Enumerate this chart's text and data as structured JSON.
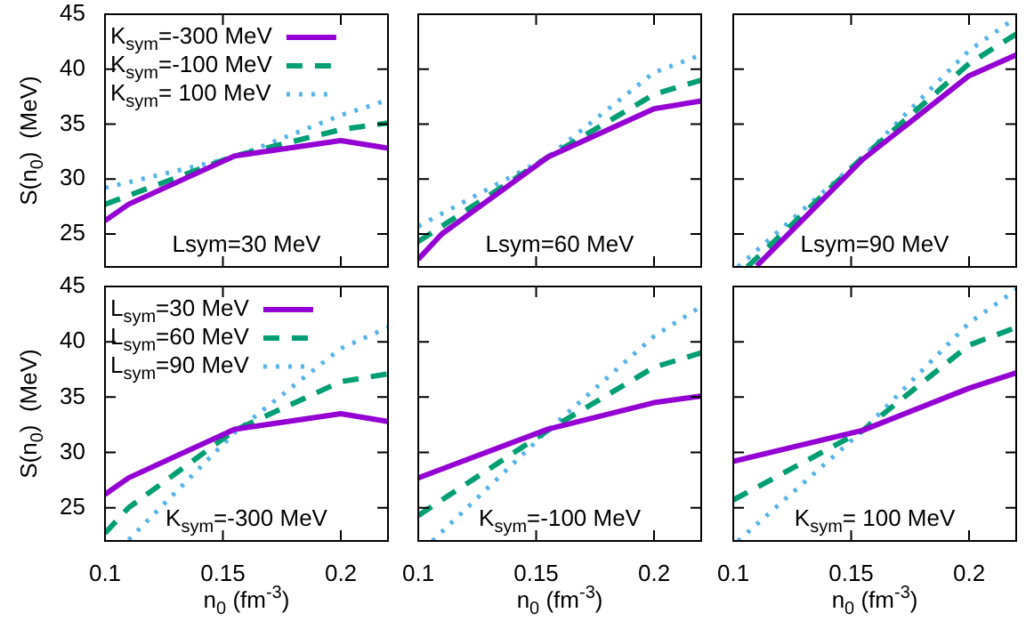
{
  "chart_data": [
    {
      "type": "line",
      "ylabel": "S(n$_{0}$)  (MeV)",
      "xlim": [
        0.1,
        0.22
      ],
      "ylim": [
        22,
        45
      ],
      "xticks": [
        0.1,
        0.15,
        0.2
      ],
      "yticks": [
        25,
        30,
        35,
        40,
        45
      ],
      "tick_labels": "y",
      "grid": false,
      "marker": "none",
      "legend": "top left",
      "annotations": [
        "Lsym=30 MeV"
      ],
      "series": [
        {
          "name": "K$_{sym}$=-300 MeV",
          "color": "#9400d3",
          "line_style": "solid",
          "x": [
            0.1,
            0.11,
            0.155,
            0.2,
            0.22
          ],
          "values": [
            26.2,
            27.7,
            32.1,
            33.5,
            32.8
          ]
        },
        {
          "name": "K$_{sym}$=-100 MeV",
          "color": "#009e73",
          "line_style": "dashed",
          "x": [
            0.1,
            0.155,
            0.2,
            0.22
          ],
          "values": [
            27.7,
            32.1,
            34.5,
            35.1
          ]
        },
        {
          "name": "K$_{sym}$= 100 MeV",
          "color": "#56b4e9",
          "line_style": "dotted",
          "x": [
            0.1,
            0.155,
            0.2,
            0.22
          ],
          "values": [
            29.2,
            32,
            35.8,
            37.2
          ]
        }
      ]
    },
    {
      "type": "line",
      "xlim": [
        0.1,
        0.22
      ],
      "ylim": [
        22,
        45
      ],
      "xticks": [
        0.1,
        0.15,
        0.2
      ],
      "yticks": [
        25,
        30,
        35,
        40,
        45
      ],
      "tick_labels": false,
      "grid": false,
      "marker": "none",
      "annotations": [
        "Lsym=60 MeV"
      ],
      "series": [
        {
          "color": "#9400d3",
          "line_style": "solid",
          "x": [
            0.1,
            0.11,
            0.155,
            0.2,
            0.22
          ],
          "values": [
            22.7,
            25,
            32,
            36.4,
            37.1
          ]
        },
        {
          "color": "#009e73",
          "line_style": "dashed",
          "x": [
            0.1,
            0.155,
            0.2,
            0.22
          ],
          "values": [
            24.3,
            32,
            37.7,
            39
          ]
        },
        {
          "color": "#56b4e9",
          "line_style": "dotted",
          "x": [
            0.1,
            0.155,
            0.2,
            0.22
          ],
          "values": [
            25.7,
            32,
            39.7,
            41.3
          ]
        }
      ]
    },
    {
      "type": "line",
      "xlim": [
        0.1,
        0.22
      ],
      "ylim": [
        22,
        45
      ],
      "xticks": [
        0.1,
        0.15,
        0.2
      ],
      "yticks": [
        25,
        30,
        35,
        40,
        45
      ],
      "tick_labels": false,
      "grid": false,
      "marker": "none",
      "annotations": [
        "Lsym=90 MeV"
      ],
      "series": [
        {
          "color": "#9400d3",
          "line_style": "solid",
          "x": [
            0.11,
            0.155,
            0.2,
            0.22
          ],
          "values": [
            22.1,
            31.8,
            39.4,
            41.3
          ]
        },
        {
          "color": "#009e73",
          "line_style": "dashed",
          "x": [
            0.106,
            0.155,
            0.2,
            0.22
          ],
          "values": [
            22,
            32,
            40.5,
            43.2
          ]
        },
        {
          "color": "#56b4e9",
          "line_style": "dotted",
          "x": [
            0.102,
            0.155,
            0.2,
            0.22
          ],
          "values": [
            22,
            32,
            41.7,
            44.7
          ]
        }
      ]
    },
    {
      "type": "line",
      "xlabel": "n$_{0}$ (fm$^{-3}$)",
      "ylabel": "S(n$_{0}$)  (MeV)",
      "xlim": [
        0.1,
        0.22
      ],
      "ylim": [
        22,
        45
      ],
      "xticks": [
        0.1,
        0.15,
        0.2
      ],
      "yticks": [
        25,
        30,
        35,
        40,
        45
      ],
      "grid": false,
      "marker": "none",
      "legend": "top left",
      "annotations": [
        "K$_{sym}$=-300 MeV"
      ],
      "series": [
        {
          "name": "L$_{sym}$=30 MeV",
          "color": "#9400d3",
          "line_style": "solid",
          "x": [
            0.1,
            0.11,
            0.155,
            0.2,
            0.22
          ],
          "values": [
            26.2,
            27.7,
            32.1,
            33.5,
            32.8
          ]
        },
        {
          "name": "L$_{sym}$=60 MeV",
          "color": "#009e73",
          "line_style": "dashed",
          "x": [
            0.1,
            0.11,
            0.155,
            0.2,
            0.22
          ],
          "values": [
            22.7,
            25,
            32,
            36.4,
            37.1
          ]
        },
        {
          "name": "L$_{sym}$=90 MeV",
          "color": "#56b4e9",
          "line_style": "dotted",
          "x": [
            0.11,
            0.155,
            0.2,
            0.22
          ],
          "values": [
            22.1,
            31.8,
            39.4,
            41.3
          ]
        }
      ]
    },
    {
      "type": "line",
      "xlabel": "n$_{0}$ (fm$^{-3}$)",
      "xlim": [
        0.1,
        0.22
      ],
      "ylim": [
        22,
        45
      ],
      "xticks": [
        0.1,
        0.15,
        0.2
      ],
      "yticks": [
        25,
        30,
        35,
        40,
        45
      ],
      "tick_labels": "x",
      "grid": false,
      "marker": "none",
      "annotations": [
        "K$_{sym}$=-100 MeV"
      ],
      "series": [
        {
          "color": "#9400d3",
          "line_style": "solid",
          "x": [
            0.1,
            0.155,
            0.2,
            0.22
          ],
          "values": [
            27.7,
            32.1,
            34.5,
            35.1
          ]
        },
        {
          "color": "#009e73",
          "line_style": "dashed",
          "x": [
            0.1,
            0.155,
            0.2,
            0.22
          ],
          "values": [
            24.3,
            32,
            37.7,
            39
          ]
        },
        {
          "color": "#56b4e9",
          "line_style": "dotted",
          "x": [
            0.106,
            0.155,
            0.2,
            0.22
          ],
          "values": [
            22,
            32,
            40.5,
            43.2
          ]
        }
      ]
    },
    {
      "type": "line",
      "xlabel": "n$_{0}$ (fm$^{-3}$)",
      "xlim": [
        0.1,
        0.22
      ],
      "ylim": [
        22,
        45
      ],
      "xticks": [
        0.1,
        0.15,
        0.2
      ],
      "yticks": [
        25,
        30,
        35,
        40,
        45
      ],
      "tick_labels": "x",
      "grid": false,
      "marker": "none",
      "annotations": [
        "K$_{sym}$= 100 MeV"
      ],
      "series": [
        {
          "color": "#9400d3",
          "line_style": "solid",
          "x": [
            0.1,
            0.155,
            0.2,
            0.22
          ],
          "values": [
            29.2,
            32,
            35.8,
            37.2
          ]
        },
        {
          "color": "#009e73",
          "line_style": "dashed",
          "x": [
            0.1,
            0.155,
            0.2,
            0.22
          ],
          "values": [
            25.7,
            32,
            39.7,
            41.3
          ]
        },
        {
          "color": "#56b4e9",
          "line_style": "dotted",
          "x": [
            0.102,
            0.155,
            0.2,
            0.22
          ],
          "values": [
            22,
            32,
            41.7,
            44.7
          ]
        }
      ]
    }
  ]
}
